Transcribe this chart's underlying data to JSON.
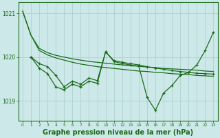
{
  "background_color": "#cce8e8",
  "grid_color": "#aacccc",
  "line_color": "#1a6b1a",
  "xlabel": "Graphe pression niveau de la mer (hPa)",
  "xlabel_fontsize": 7.0,
  "xlim": [
    -0.5,
    23.5
  ],
  "ylim": [
    1018.55,
    1021.25
  ],
  "yticks": [
    1019,
    1020,
    1021
  ],
  "xticks": [
    0,
    1,
    2,
    3,
    4,
    5,
    6,
    7,
    8,
    9,
    10,
    11,
    12,
    13,
    14,
    15,
    16,
    17,
    18,
    19,
    20,
    21,
    22,
    23
  ],
  "smooth1_y": [
    1021.05,
    1020.5,
    1020.15,
    1020.05,
    1019.98,
    1019.93,
    1019.88,
    1019.84,
    1019.81,
    1019.78,
    1019.76,
    1019.74,
    1019.72,
    1019.7,
    1019.68,
    1019.67,
    1019.65,
    1019.64,
    1019.62,
    1019.61,
    1019.6,
    1019.58,
    1019.57,
    1019.56
  ],
  "smooth2_y": [
    1021.05,
    1020.5,
    1020.2,
    1020.1,
    1020.04,
    1020.0,
    1019.96,
    1019.93,
    1019.9,
    1019.88,
    1019.86,
    1019.84,
    1019.82,
    1019.8,
    1019.79,
    1019.77,
    1019.76,
    1019.74,
    1019.73,
    1019.72,
    1019.71,
    1019.7,
    1019.68,
    1019.67
  ],
  "jagged1_x": [
    1,
    2,
    3,
    4,
    5,
    6,
    7,
    8,
    9,
    10,
    11,
    12,
    13,
    14,
    15,
    16,
    17,
    18,
    19,
    20,
    21,
    22,
    23
  ],
  "jagged1_y": [
    1020.0,
    1019.85,
    1019.78,
    1019.58,
    1019.32,
    1019.45,
    1019.38,
    1019.52,
    1019.46,
    1020.12,
    1019.92,
    1019.88,
    1019.85,
    1019.82,
    1019.78,
    1019.75,
    1019.72,
    1019.69,
    1019.67,
    1019.65,
    1019.63,
    1019.62,
    1019.61
  ],
  "jagged2_x": [
    1,
    2,
    3,
    4,
    5,
    6,
    7,
    8,
    9,
    10,
    11,
    12,
    13,
    14,
    15,
    16,
    17,
    18,
    19,
    20,
    21,
    22,
    23
  ],
  "jagged2_y": [
    1020.0,
    1019.75,
    1019.62,
    1019.32,
    1019.25,
    1019.38,
    1019.32,
    1019.45,
    1019.4,
    1020.12,
    1019.9,
    1019.85,
    1019.82,
    1019.79,
    1019.08,
    1018.78,
    1019.18,
    1019.35,
    1019.58,
    1019.65,
    1019.82,
    1020.15,
    1020.57
  ]
}
